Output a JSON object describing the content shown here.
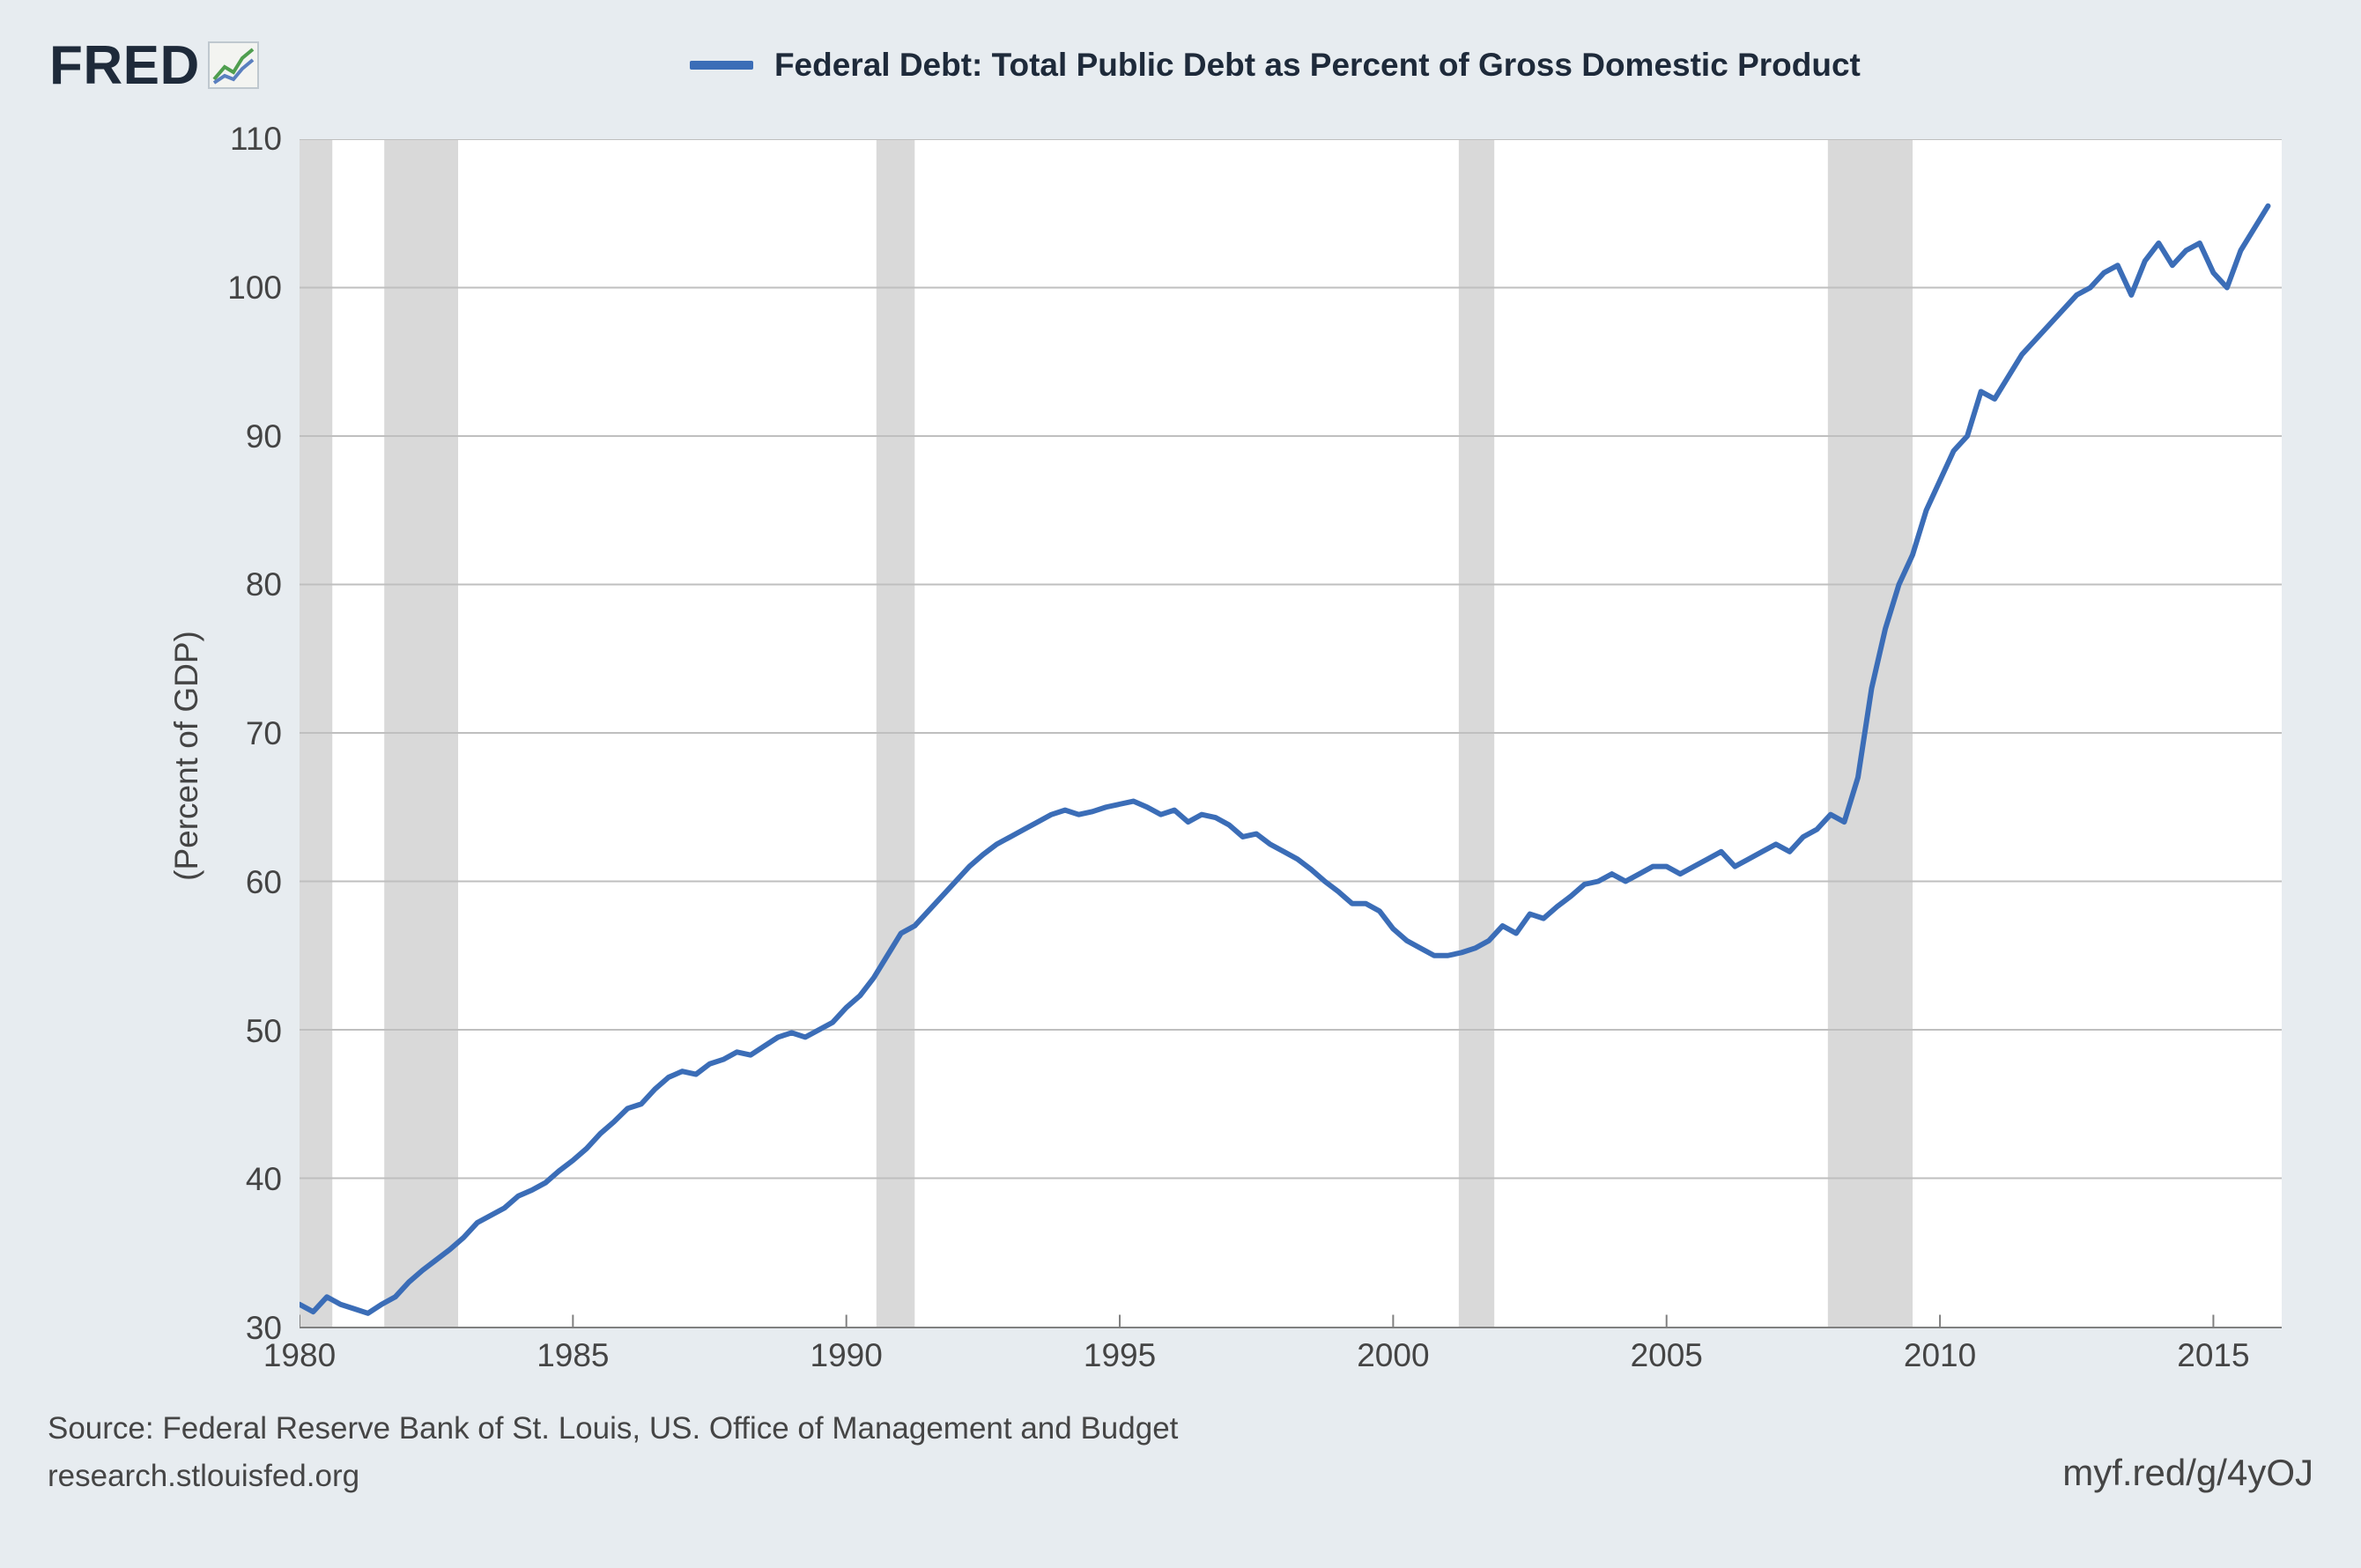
{
  "logo": {
    "text": "FRED"
  },
  "legend": {
    "label": "Federal Debt: Total Public Debt as Percent of Gross Domestic Product"
  },
  "chart": {
    "type": "line",
    "y_axis_label": "(Percent of GDP)",
    "ylim": [
      30,
      110
    ],
    "ytick_step": 10,
    "y_ticks": [
      30,
      40,
      50,
      60,
      70,
      80,
      90,
      100,
      110
    ],
    "xlim": [
      1980,
      2016.25
    ],
    "x_ticks": [
      1980,
      1985,
      1990,
      1995,
      2000,
      2005,
      2010,
      2015
    ],
    "line_color": "#3b6db7",
    "line_width": 6,
    "grid_color": "#bfbfbf",
    "background_color": "#ffffff",
    "recession_color": "#d9d9d9",
    "recession_bands": [
      [
        1980.0,
        1980.6
      ],
      [
        1981.55,
        1982.9
      ],
      [
        1990.55,
        1991.25
      ],
      [
        2001.2,
        2001.85
      ],
      [
        2007.95,
        2009.5
      ]
    ],
    "series": {
      "x": [
        1980.0,
        1980.25,
        1980.5,
        1980.75,
        1981.0,
        1981.25,
        1981.5,
        1981.75,
        1982.0,
        1982.25,
        1982.5,
        1982.75,
        1983.0,
        1983.25,
        1983.5,
        1983.75,
        1984.0,
        1984.25,
        1984.5,
        1984.75,
        1985.0,
        1985.25,
        1985.5,
        1985.75,
        1986.0,
        1986.25,
        1986.5,
        1986.75,
        1987.0,
        1987.25,
        1987.5,
        1987.75,
        1988.0,
        1988.25,
        1988.5,
        1988.75,
        1989.0,
        1989.25,
        1989.5,
        1989.75,
        1990.0,
        1990.25,
        1990.5,
        1990.75,
        1991.0,
        1991.25,
        1991.5,
        1991.75,
        1992.0,
        1992.25,
        1992.5,
        1992.75,
        1993.0,
        1993.25,
        1993.5,
        1993.75,
        1994.0,
        1994.25,
        1994.5,
        1994.75,
        1995.0,
        1995.25,
        1995.5,
        1995.75,
        1996.0,
        1996.25,
        1996.5,
        1996.75,
        1997.0,
        1997.25,
        1997.5,
        1997.75,
        1998.0,
        1998.25,
        1998.5,
        1998.75,
        1999.0,
        1999.25,
        1999.5,
        1999.75,
        2000.0,
        2000.25,
        2000.5,
        2000.75,
        2001.0,
        2001.25,
        2001.5,
        2001.75,
        2002.0,
        2002.25,
        2002.5,
        2002.75,
        2003.0,
        2003.25,
        2003.5,
        2003.75,
        2004.0,
        2004.25,
        2004.5,
        2004.75,
        2005.0,
        2005.25,
        2005.5,
        2005.75,
        2006.0,
        2006.25,
        2006.5,
        2006.75,
        2007.0,
        2007.25,
        2007.5,
        2007.75,
        2008.0,
        2008.25,
        2008.5,
        2008.75,
        2009.0,
        2009.25,
        2009.5,
        2009.75,
        2010.0,
        2010.25,
        2010.5,
        2010.75,
        2011.0,
        2011.25,
        2011.5,
        2011.75,
        2012.0,
        2012.25,
        2012.5,
        2012.75,
        2013.0,
        2013.25,
        2013.5,
        2013.75,
        2014.0,
        2014.25,
        2014.5,
        2014.75,
        2015.0,
        2015.25,
        2015.5,
        2015.75,
        2016.0
      ],
      "y": [
        31.5,
        31.0,
        32.0,
        31.5,
        31.2,
        30.9,
        31.5,
        32.0,
        33.0,
        33.8,
        34.5,
        35.2,
        36.0,
        37.0,
        37.5,
        38.0,
        38.8,
        39.2,
        39.7,
        40.5,
        41.2,
        42.0,
        43.0,
        43.8,
        44.7,
        45.0,
        46.0,
        46.8,
        47.2,
        47.0,
        47.7,
        48.0,
        48.5,
        48.3,
        48.9,
        49.5,
        49.8,
        49.5,
        50.0,
        50.5,
        51.5,
        52.3,
        53.5,
        55.0,
        56.5,
        57.0,
        58.0,
        59.0,
        60.0,
        61.0,
        61.8,
        62.5,
        63.0,
        63.5,
        64.0,
        64.5,
        64.8,
        64.5,
        64.7,
        65.0,
        65.2,
        65.4,
        65.0,
        64.5,
        64.8,
        64.0,
        64.5,
        64.3,
        63.8,
        63.0,
        63.2,
        62.5,
        62.0,
        61.5,
        60.8,
        60.0,
        59.3,
        58.5,
        58.5,
        58.0,
        56.8,
        56.0,
        55.5,
        55.0,
        55.0,
        55.2,
        55.5,
        56.0,
        57.0,
        56.5,
        57.8,
        57.5,
        58.3,
        59.0,
        59.8,
        60.0,
        60.5,
        60.0,
        60.5,
        61.0,
        61.0,
        60.5,
        61.0,
        61.5,
        62.0,
        61.0,
        61.5,
        62.0,
        62.5,
        62.0,
        63.0,
        63.5,
        64.5,
        64.0,
        67.0,
        73.0,
        77.0,
        80.0,
        82.0,
        85.0,
        87.0,
        89.0,
        90.0,
        93.0,
        92.5,
        94.0,
        95.5,
        96.5,
        97.5,
        98.5,
        99.5,
        100.0,
        101.0,
        101.5,
        99.5,
        101.8,
        103.0,
        101.5,
        102.5,
        103.0,
        101.0,
        100.0,
        102.5,
        104.0,
        105.5
      ]
    }
  },
  "footer": {
    "source": "Source: Federal Reserve Bank of St. Louis, US. Office of Management and Budget",
    "site": "research.stlouisfed.org",
    "shortlink": "myf.red/g/4yOJ"
  }
}
